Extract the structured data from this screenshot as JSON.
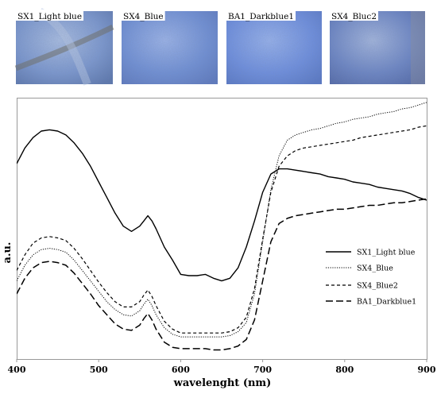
{
  "thumbnails": [
    {
      "label": "SX1_Light blue",
      "base": "#7a97cf",
      "light": "#a9bee3",
      "dark": "#5a76ad",
      "stain": "#6b6a5c"
    },
    {
      "label": "SX4_Blue",
      "base": "#6e8fd6",
      "light": "#9bb4ea",
      "dark": "#5b78bf",
      "stain": ""
    },
    {
      "label": "BA1_Darkblue1",
      "base": "#6c8ee0",
      "light": "#96b2ee",
      "dark": "#5677c6",
      "stain": ""
    },
    {
      "label": "SX4_Bluc2",
      "base": "#6a84c4",
      "light": "#a3b6de",
      "dark": "#4f66a6",
      "stain": "#8a8f9e"
    }
  ],
  "chart_data": {
    "type": "line",
    "xlabel": "wavelenght (nm)",
    "ylabel": "a.u.",
    "xlim": [
      400,
      900
    ],
    "ylim": [
      0,
      100
    ],
    "xticks": [
      "400",
      "500",
      "600",
      "700",
      "800",
      "900"
    ],
    "grid": false,
    "legend_position": "right",
    "series": [
      {
        "name": "SX1_Light blue",
        "dash": "solid",
        "x": [
          400,
          410,
          420,
          430,
          440,
          450,
          460,
          470,
          480,
          490,
          500,
          510,
          520,
          530,
          540,
          550,
          555,
          560,
          565,
          570,
          580,
          590,
          600,
          610,
          620,
          630,
          640,
          650,
          660,
          670,
          680,
          690,
          700,
          710,
          720,
          730,
          740,
          750,
          760,
          770,
          780,
          790,
          800,
          810,
          820,
          830,
          840,
          850,
          860,
          870,
          880,
          890,
          900
        ],
        "y": [
          75,
          81,
          85,
          87.5,
          88,
          87.5,
          86,
          83,
          79,
          74,
          68,
          62,
          56,
          51,
          49,
          51,
          53,
          55,
          53,
          50,
          43,
          38,
          32.5,
          32,
          32,
          32.5,
          31,
          30,
          31,
          35,
          43,
          53,
          64,
          71,
          73,
          73,
          72.5,
          72,
          71.5,
          71,
          70,
          69.5,
          69,
          68,
          67.5,
          67,
          66,
          65.5,
          65,
          64.5,
          63.5,
          62,
          61
        ]
      },
      {
        "name": "SX4_Blue",
        "dash": "dotted",
        "x": [
          400,
          410,
          420,
          430,
          440,
          450,
          460,
          470,
          480,
          490,
          500,
          510,
          520,
          530,
          540,
          550,
          555,
          560,
          565,
          570,
          580,
          590,
          600,
          610,
          620,
          630,
          640,
          650,
          660,
          670,
          680,
          690,
          700,
          710,
          720,
          730,
          740,
          750,
          760,
          770,
          780,
          790,
          800,
          810,
          820,
          830,
          840,
          850,
          860,
          870,
          880,
          890,
          900
        ],
        "y": [
          30,
          36,
          40,
          42,
          42.5,
          42,
          41,
          38,
          34,
          30,
          26,
          22,
          19,
          17,
          16.5,
          18.5,
          21,
          23,
          20.5,
          17,
          12,
          9.5,
          8.5,
          8.5,
          8.5,
          8.5,
          8.5,
          8.5,
          9,
          10.5,
          14,
          25,
          45,
          65,
          78,
          84,
          86,
          87,
          88,
          88.5,
          89.5,
          90.5,
          91,
          92,
          92.5,
          93,
          94,
          94.5,
          95,
          96,
          96.5,
          97.5,
          98.5
        ]
      },
      {
        "name": "SX4_Blue2",
        "dash": "short-dash",
        "x": [
          400,
          410,
          420,
          430,
          440,
          450,
          460,
          470,
          480,
          490,
          500,
          510,
          520,
          530,
          540,
          550,
          555,
          560,
          565,
          570,
          580,
          590,
          600,
          610,
          620,
          630,
          640,
          650,
          660,
          670,
          680,
          690,
          700,
          710,
          720,
          730,
          740,
          750,
          760,
          770,
          780,
          790,
          800,
          810,
          820,
          830,
          840,
          850,
          860,
          870,
          880,
          890,
          900
        ],
        "y": [
          34,
          40,
          44.5,
          46.5,
          47,
          46.5,
          45.5,
          42.5,
          38.5,
          34,
          29.5,
          25.5,
          22,
          20,
          20,
          22,
          24.5,
          26.5,
          24,
          20.5,
          14.5,
          11.5,
          10,
          10,
          10,
          10,
          10,
          10,
          10.5,
          12,
          16,
          27,
          46,
          64,
          74,
          78,
          80,
          81,
          81.5,
          82,
          82.5,
          83,
          83.5,
          84,
          85,
          85.5,
          86,
          86.5,
          87,
          87.5,
          88,
          89,
          89.5
        ]
      },
      {
        "name": "BA1_Darkblue1",
        "dash": "long-dash",
        "x": [
          400,
          410,
          420,
          430,
          440,
          450,
          460,
          470,
          480,
          490,
          500,
          510,
          520,
          530,
          540,
          550,
          555,
          560,
          565,
          570,
          580,
          590,
          600,
          610,
          620,
          630,
          640,
          650,
          660,
          670,
          680,
          690,
          700,
          710,
          720,
          730,
          740,
          750,
          760,
          770,
          780,
          790,
          800,
          810,
          820,
          830,
          840,
          850,
          860,
          870,
          880,
          890,
          900
        ],
        "y": [
          25,
          31,
          35,
          37,
          37.5,
          37,
          36,
          33,
          29,
          25,
          20.5,
          17,
          13.5,
          11.5,
          11,
          13,
          15.5,
          17.5,
          15,
          11.5,
          6.5,
          4.5,
          4,
          4,
          4,
          4,
          3.5,
          3.5,
          4,
          5,
          7.5,
          15,
          30,
          45,
          52,
          54,
          55,
          55.5,
          56,
          56.5,
          57,
          57.5,
          57.5,
          58,
          58.5,
          59,
          59,
          59.5,
          60,
          60,
          60.5,
          61,
          61.5
        ]
      }
    ]
  },
  "legend": [
    {
      "label": "SX1_Light blue",
      "dash": "solid"
    },
    {
      "label": "SX4_Blue",
      "dash": "dotted"
    },
    {
      "label": "SX4_Blue2",
      "dash": "short-dash"
    },
    {
      "label": "BA1_Darkblue1",
      "dash": "long-dash"
    }
  ]
}
